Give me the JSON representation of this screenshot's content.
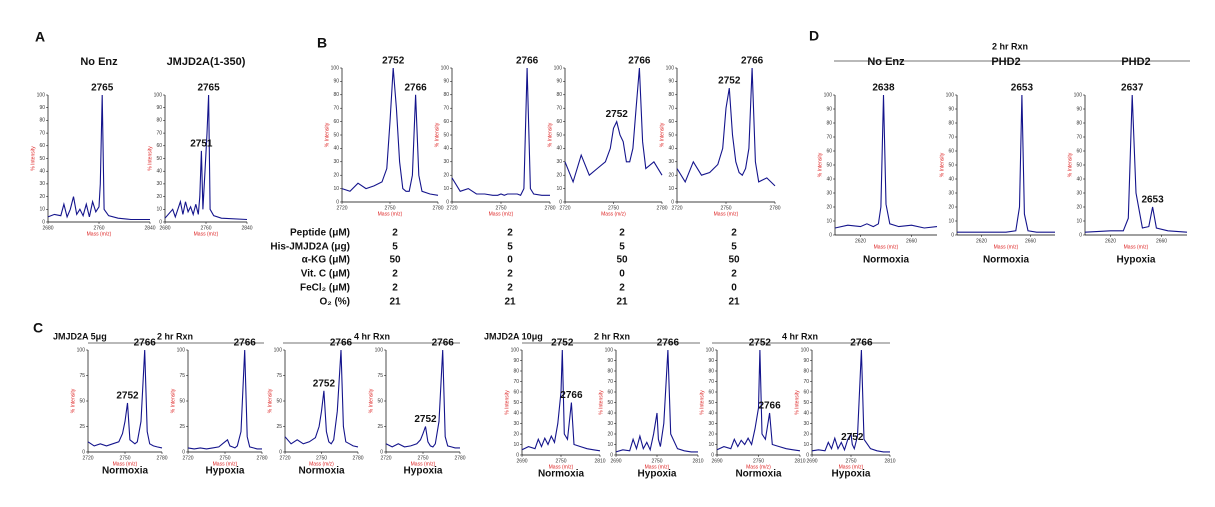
{
  "panels": [
    "A",
    "B",
    "C",
    "D"
  ],
  "headers": [
    "2 hr Rxn",
    "JMJD2A  5μg",
    "2 hr Rxn",
    "4 hr Rxn",
    "JMJD2A  10μg",
    "2 hr Rxn",
    "4 hr Rxn"
  ],
  "table": {
    "rows": [
      {
        "label": "Peptide (μM)",
        "values": [
          2,
          2,
          2,
          2
        ]
      },
      {
        "label": "His-JMJD2A  (μg)",
        "values": [
          5,
          5,
          5,
          5
        ]
      },
      {
        "label": "α-KG (μM)",
        "values": [
          50,
          0,
          50,
          50
        ]
      },
      {
        "label": "Vit. C (μM)",
        "values": [
          2,
          2,
          0,
          2
        ]
      },
      {
        "label": "FeCl₂ (μM)",
        "values": [
          2,
          2,
          2,
          0
        ]
      },
      {
        "label": "O₂ (%)",
        "values": [
          21,
          21,
          21,
          21
        ]
      }
    ]
  },
  "chart_data": [
    {
      "type": "line",
      "title": "No Enz",
      "xlabel": "Mass (m/z)",
      "ylabel": "% Intensity",
      "color": "#14148c",
      "xlim": [
        2680,
        2840
      ],
      "xticks": [
        2680,
        2760,
        2840
      ],
      "ylim": [
        0,
        100
      ],
      "yticks": [
        0,
        10,
        20,
        30,
        40,
        50,
        60,
        70,
        80,
        90,
        100
      ],
      "annotations": [
        2765
      ],
      "x": [
        2680,
        2690,
        2700,
        2705,
        2710,
        2715,
        2720,
        2725,
        2730,
        2735,
        2740,
        2745,
        2750,
        2755,
        2760,
        2762,
        2765,
        2768,
        2775,
        2790,
        2810,
        2840
      ],
      "values": [
        4,
        6,
        5,
        14,
        4,
        10,
        20,
        6,
        10,
        5,
        14,
        4,
        16,
        8,
        12,
        30,
        100,
        10,
        5,
        3,
        2,
        2
      ]
    },
    {
      "type": "line",
      "title": "JMJD2A(1-350)",
      "xlabel": "Mass (m/z)",
      "ylabel": "% Intensity",
      "color": "#14148c",
      "xlim": [
        2680,
        2840
      ],
      "xticks": [
        2680,
        2760,
        2840
      ],
      "ylim": [
        0,
        100
      ],
      "yticks": [
        0,
        10,
        20,
        30,
        40,
        50,
        60,
        70,
        80,
        90,
        100
      ],
      "annotations": [
        2751,
        2765
      ],
      "x": [
        2680,
        2695,
        2700,
        2710,
        2715,
        2720,
        2725,
        2730,
        2735,
        2740,
        2745,
        2748,
        2751,
        2754,
        2758,
        2762,
        2765,
        2768,
        2775,
        2790,
        2840
      ],
      "values": [
        3,
        10,
        4,
        16,
        6,
        16,
        8,
        12,
        6,
        14,
        6,
        20,
        56,
        10,
        40,
        70,
        100,
        10,
        5,
        3,
        2
      ]
    },
    {
      "type": "line",
      "xlabel": "Mass (m/z)",
      "ylabel": "% Intensity",
      "color": "#14148c",
      "xlim": [
        2720,
        2780
      ],
      "xticks": [
        2720,
        2750,
        2780
      ],
      "ylim": [
        0,
        100
      ],
      "yticks": [
        0,
        10,
        20,
        30,
        40,
        50,
        60,
        70,
        80,
        90,
        100
      ],
      "annotations": [
        2752,
        2766
      ],
      "x": [
        2720,
        2725,
        2730,
        2735,
        2740,
        2745,
        2748,
        2750,
        2752,
        2754,
        2756,
        2758,
        2760,
        2762,
        2764,
        2766,
        2768,
        2770,
        2775,
        2780
      ],
      "values": [
        10,
        8,
        14,
        10,
        12,
        15,
        25,
        60,
        100,
        70,
        30,
        10,
        8,
        8,
        20,
        80,
        20,
        8,
        6,
        5
      ]
    },
    {
      "type": "line",
      "xlabel": "Mass (m/z)",
      "ylabel": "% Intensity",
      "color": "#14148c",
      "xlim": [
        2720,
        2780
      ],
      "xticks": [
        2720,
        2750,
        2780
      ],
      "ylim": [
        0,
        100
      ],
      "yticks": [
        0,
        10,
        20,
        30,
        40,
        50,
        60,
        70,
        80,
        90,
        100
      ],
      "annotations": [
        2766
      ],
      "x": [
        2720,
        2725,
        2730,
        2735,
        2740,
        2745,
        2748,
        2750,
        2752,
        2754,
        2756,
        2758,
        2760,
        2762,
        2764,
        2766,
        2768,
        2770,
        2775,
        2780
      ],
      "values": [
        18,
        8,
        10,
        6,
        6,
        5,
        5,
        6,
        5,
        6,
        6,
        6,
        6,
        5,
        10,
        100,
        10,
        6,
        5,
        5
      ]
    },
    {
      "type": "line",
      "xlabel": "Mass (m/z)",
      "ylabel": "% Intensity",
      "color": "#14148c",
      "xlim": [
        2720,
        2780
      ],
      "xticks": [
        2720,
        2750,
        2780
      ],
      "ylim": [
        0,
        100
      ],
      "yticks": [
        0,
        10,
        20,
        30,
        40,
        50,
        60,
        70,
        80,
        90,
        100
      ],
      "annotations": [
        2752,
        2766
      ],
      "x": [
        2720,
        2725,
        2730,
        2735,
        2740,
        2745,
        2748,
        2750,
        2752,
        2754,
        2756,
        2758,
        2760,
        2762,
        2764,
        2766,
        2768,
        2770,
        2775,
        2780
      ],
      "values": [
        30,
        15,
        35,
        20,
        25,
        30,
        40,
        55,
        60,
        50,
        45,
        30,
        30,
        40,
        70,
        100,
        45,
        25,
        30,
        20
      ]
    },
    {
      "type": "line",
      "xlabel": "Mass (m/z)",
      "ylabel": "% Intensity",
      "color": "#14148c",
      "xlim": [
        2720,
        2780
      ],
      "xticks": [
        2720,
        2750,
        2780
      ],
      "ylim": [
        0,
        100
      ],
      "yticks": [
        0,
        10,
        20,
        30,
        40,
        50,
        60,
        70,
        80,
        90,
        100
      ],
      "annotations": [
        2752,
        2766
      ],
      "x": [
        2720,
        2725,
        2730,
        2735,
        2740,
        2745,
        2748,
        2750,
        2752,
        2754,
        2756,
        2758,
        2760,
        2762,
        2764,
        2766,
        2768,
        2770,
        2775,
        2780
      ],
      "values": [
        25,
        15,
        30,
        20,
        22,
        28,
        40,
        70,
        85,
        50,
        30,
        22,
        20,
        25,
        40,
        100,
        30,
        15,
        18,
        12
      ]
    },
    {
      "type": "line",
      "title": "No Enz",
      "footer": "Normoxia",
      "xlabel": "Mass (m/z)",
      "ylabel": "% Intensity",
      "color": "#14148c",
      "xlim": [
        2600,
        2680
      ],
      "xticks": [
        2620,
        2660
      ],
      "ylim": [
        0,
        100
      ],
      "yticks": [
        0,
        10,
        20,
        30,
        40,
        50,
        60,
        70,
        80,
        90,
        100
      ],
      "annotations": [
        2638
      ],
      "x": [
        2600,
        2610,
        2620,
        2625,
        2630,
        2634,
        2636,
        2638,
        2640,
        2643,
        2650,
        2660,
        2670,
        2680
      ],
      "values": [
        5,
        7,
        6,
        8,
        6,
        8,
        20,
        100,
        22,
        8,
        6,
        7,
        5,
        6
      ]
    },
    {
      "type": "line",
      "title": "PHD2",
      "footer": "Normoxia",
      "xlabel": "Mass (m/z)",
      "ylabel": "% Intensity",
      "color": "#14148c",
      "xlim": [
        2600,
        2680
      ],
      "xticks": [
        2620,
        2660
      ],
      "ylim": [
        0,
        100
      ],
      "yticks": [
        0,
        10,
        20,
        30,
        40,
        50,
        60,
        70,
        80,
        90,
        100
      ],
      "annotations": [
        2653
      ],
      "x": [
        2600,
        2620,
        2640,
        2648,
        2651,
        2653,
        2655,
        2658,
        2665,
        2680
      ],
      "values": [
        2,
        2,
        2,
        3,
        20,
        100,
        15,
        3,
        2,
        2
      ]
    },
    {
      "type": "line",
      "title": "PHD2",
      "footer": "Hypoxia",
      "xlabel": "Mass (m/z)",
      "ylabel": "% Intensity",
      "color": "#14148c",
      "xlim": [
        2600,
        2680
      ],
      "xticks": [
        2620,
        2660
      ],
      "ylim": [
        0,
        100
      ],
      "yticks": [
        0,
        10,
        20,
        30,
        40,
        50,
        60,
        70,
        80,
        90,
        100
      ],
      "annotations": [
        2637,
        2653
      ],
      "x": [
        2600,
        2620,
        2630,
        2634,
        2637,
        2640,
        2645,
        2650,
        2653,
        2656,
        2665,
        2680
      ],
      "values": [
        2,
        3,
        3,
        12,
        100,
        30,
        5,
        6,
        20,
        5,
        3,
        2
      ]
    },
    {
      "type": "line",
      "footer": "Normoxia",
      "xlabel": "Mass (m/z)",
      "ylabel": "% Intensity",
      "color": "#14148c",
      "xlim": [
        2720,
        2780
      ],
      "xticks": [
        2720,
        2750,
        2780
      ],
      "ylim": [
        0,
        100
      ],
      "yticks": [
        0,
        25,
        50,
        75,
        100
      ],
      "annotations": [
        2752,
        2766
      ],
      "x": [
        2720,
        2725,
        2730,
        2735,
        2740,
        2745,
        2748,
        2750,
        2752,
        2754,
        2756,
        2758,
        2760,
        2763,
        2766,
        2768,
        2770,
        2773,
        2776,
        2780
      ],
      "values": [
        10,
        6,
        8,
        6,
        8,
        10,
        18,
        30,
        48,
        12,
        10,
        8,
        10,
        30,
        100,
        20,
        8,
        6,
        5,
        4
      ]
    },
    {
      "type": "line",
      "footer": "Hypoxia",
      "xlabel": "Mass (m/z)",
      "ylabel": "% Intensity",
      "color": "#14148c",
      "xlim": [
        2720,
        2780
      ],
      "xticks": [
        2720,
        2750,
        2780
      ],
      "ylim": [
        0,
        100
      ],
      "yticks": [
        0,
        25,
        50,
        75,
        100
      ],
      "annotations": [
        2766
      ],
      "x": [
        2720,
        2725,
        2730,
        2735,
        2740,
        2745,
        2748,
        2750,
        2752,
        2754,
        2756,
        2758,
        2760,
        2763,
        2766,
        2768,
        2770,
        2773,
        2776,
        2780
      ],
      "values": [
        4,
        3,
        4,
        3,
        4,
        5,
        8,
        10,
        12,
        6,
        5,
        4,
        6,
        20,
        100,
        15,
        5,
        4,
        3,
        3
      ]
    },
    {
      "type": "line",
      "footer": "Normoxia",
      "xlabel": "Mass (m/z)",
      "ylabel": "% Intensity",
      "color": "#14148c",
      "xlim": [
        2720,
        2780
      ],
      "xticks": [
        2720,
        2750,
        2780
      ],
      "ylim": [
        0,
        100
      ],
      "yticks": [
        0,
        25,
        50,
        75,
        100
      ],
      "annotations": [
        2752,
        2766
      ],
      "x": [
        2720,
        2725,
        2730,
        2735,
        2740,
        2745,
        2748,
        2750,
        2752,
        2754,
        2756,
        2758,
        2760,
        2763,
        2766,
        2768,
        2770,
        2773,
        2776,
        2780
      ],
      "values": [
        15,
        8,
        12,
        8,
        10,
        14,
        25,
        40,
        60,
        20,
        10,
        8,
        12,
        40,
        100,
        25,
        10,
        8,
        6,
        5
      ]
    },
    {
      "type": "line",
      "footer": "Hypoxia",
      "xlabel": "Mass (m/z)",
      "ylabel": "% Intensity",
      "color": "#14148c",
      "xlim": [
        2720,
        2780
      ],
      "xticks": [
        2720,
        2750,
        2780
      ],
      "ylim": [
        0,
        100
      ],
      "yticks": [
        0,
        25,
        50,
        75,
        100
      ],
      "annotations": [
        2752,
        2766
      ],
      "x": [
        2720,
        2725,
        2730,
        2735,
        2740,
        2745,
        2748,
        2750,
        2752,
        2754,
        2756,
        2758,
        2760,
        2763,
        2766,
        2768,
        2770,
        2773,
        2776,
        2780
      ],
      "values": [
        8,
        5,
        8,
        5,
        6,
        8,
        12,
        18,
        25,
        10,
        6,
        5,
        8,
        30,
        100,
        15,
        6,
        5,
        4,
        4
      ]
    },
    {
      "type": "line",
      "footer": "Normoxia",
      "xlabel": "Mass (m/z)",
      "ylabel": "% Intensity",
      "color": "#14148c",
      "xlim": [
        2690,
        2810
      ],
      "xticks": [
        2690,
        2750,
        2810
      ],
      "ylim": [
        0,
        100
      ],
      "yticks": [
        0,
        10,
        20,
        30,
        40,
        50,
        60,
        70,
        80,
        90,
        100
      ],
      "annotations": [
        2752,
        2766
      ],
      "x": [
        2690,
        2700,
        2710,
        2715,
        2720,
        2725,
        2730,
        2735,
        2740,
        2745,
        2750,
        2752,
        2755,
        2760,
        2766,
        2770,
        2780,
        2790,
        2800,
        2810
      ],
      "values": [
        5,
        8,
        6,
        15,
        8,
        16,
        10,
        18,
        12,
        30,
        60,
        100,
        20,
        15,
        50,
        10,
        8,
        6,
        5,
        4
      ]
    },
    {
      "type": "line",
      "footer": "Hypoxia",
      "xlabel": "Mass (m/z)",
      "ylabel": "% Intensity",
      "color": "#14148c",
      "xlim": [
        2690,
        2810
      ],
      "xticks": [
        2690,
        2750,
        2810
      ],
      "ylim": [
        0,
        100
      ],
      "yticks": [
        0,
        10,
        20,
        30,
        40,
        50,
        60,
        70,
        80,
        90,
        100
      ],
      "annotations": [
        2766
      ],
      "x": [
        2690,
        2700,
        2710,
        2715,
        2720,
        2725,
        2730,
        2735,
        2740,
        2745,
        2750,
        2752,
        2755,
        2760,
        2766,
        2770,
        2780,
        2790,
        2800,
        2810
      ],
      "values": [
        3,
        5,
        4,
        15,
        6,
        18,
        6,
        12,
        5,
        20,
        40,
        15,
        8,
        30,
        100,
        20,
        6,
        4,
        3,
        3
      ]
    },
    {
      "type": "line",
      "footer": "Normoxia",
      "xlabel": "Mass (m/z)",
      "ylabel": "% Intensity",
      "color": "#14148c",
      "xlim": [
        2690,
        2810
      ],
      "xticks": [
        2690,
        2750,
        2810
      ],
      "ylim": [
        0,
        100
      ],
      "yticks": [
        0,
        10,
        20,
        30,
        40,
        50,
        60,
        70,
        80,
        90,
        100
      ],
      "annotations": [
        2752,
        2766
      ],
      "x": [
        2690,
        2700,
        2710,
        2715,
        2720,
        2725,
        2730,
        2735,
        2740,
        2745,
        2750,
        2752,
        2755,
        2760,
        2766,
        2770,
        2780,
        2790,
        2800,
        2810
      ],
      "values": [
        5,
        8,
        6,
        15,
        8,
        14,
        10,
        16,
        10,
        25,
        45,
        100,
        20,
        15,
        40,
        10,
        8,
        6,
        5,
        4
      ]
    },
    {
      "type": "line",
      "footer": "Hypoxia",
      "xlabel": "Mass (m/z)",
      "ylabel": "% Intensity",
      "color": "#14148c",
      "xlim": [
        2690,
        2810
      ],
      "xticks": [
        2690,
        2750,
        2810
      ],
      "ylim": [
        0,
        100
      ],
      "yticks": [
        0,
        10,
        20,
        30,
        40,
        50,
        60,
        70,
        80,
        90,
        100
      ],
      "annotations": [
        2752,
        2766
      ],
      "x": [
        2690,
        2700,
        2710,
        2715,
        2720,
        2725,
        2730,
        2735,
        2740,
        2745,
        2750,
        2752,
        2755,
        2760,
        2766,
        2770,
        2780,
        2790,
        2800,
        2810
      ],
      "values": [
        4,
        5,
        4,
        12,
        6,
        16,
        6,
        12,
        5,
        15,
        20,
        10,
        6,
        18,
        100,
        15,
        6,
        4,
        3,
        3
      ]
    }
  ]
}
